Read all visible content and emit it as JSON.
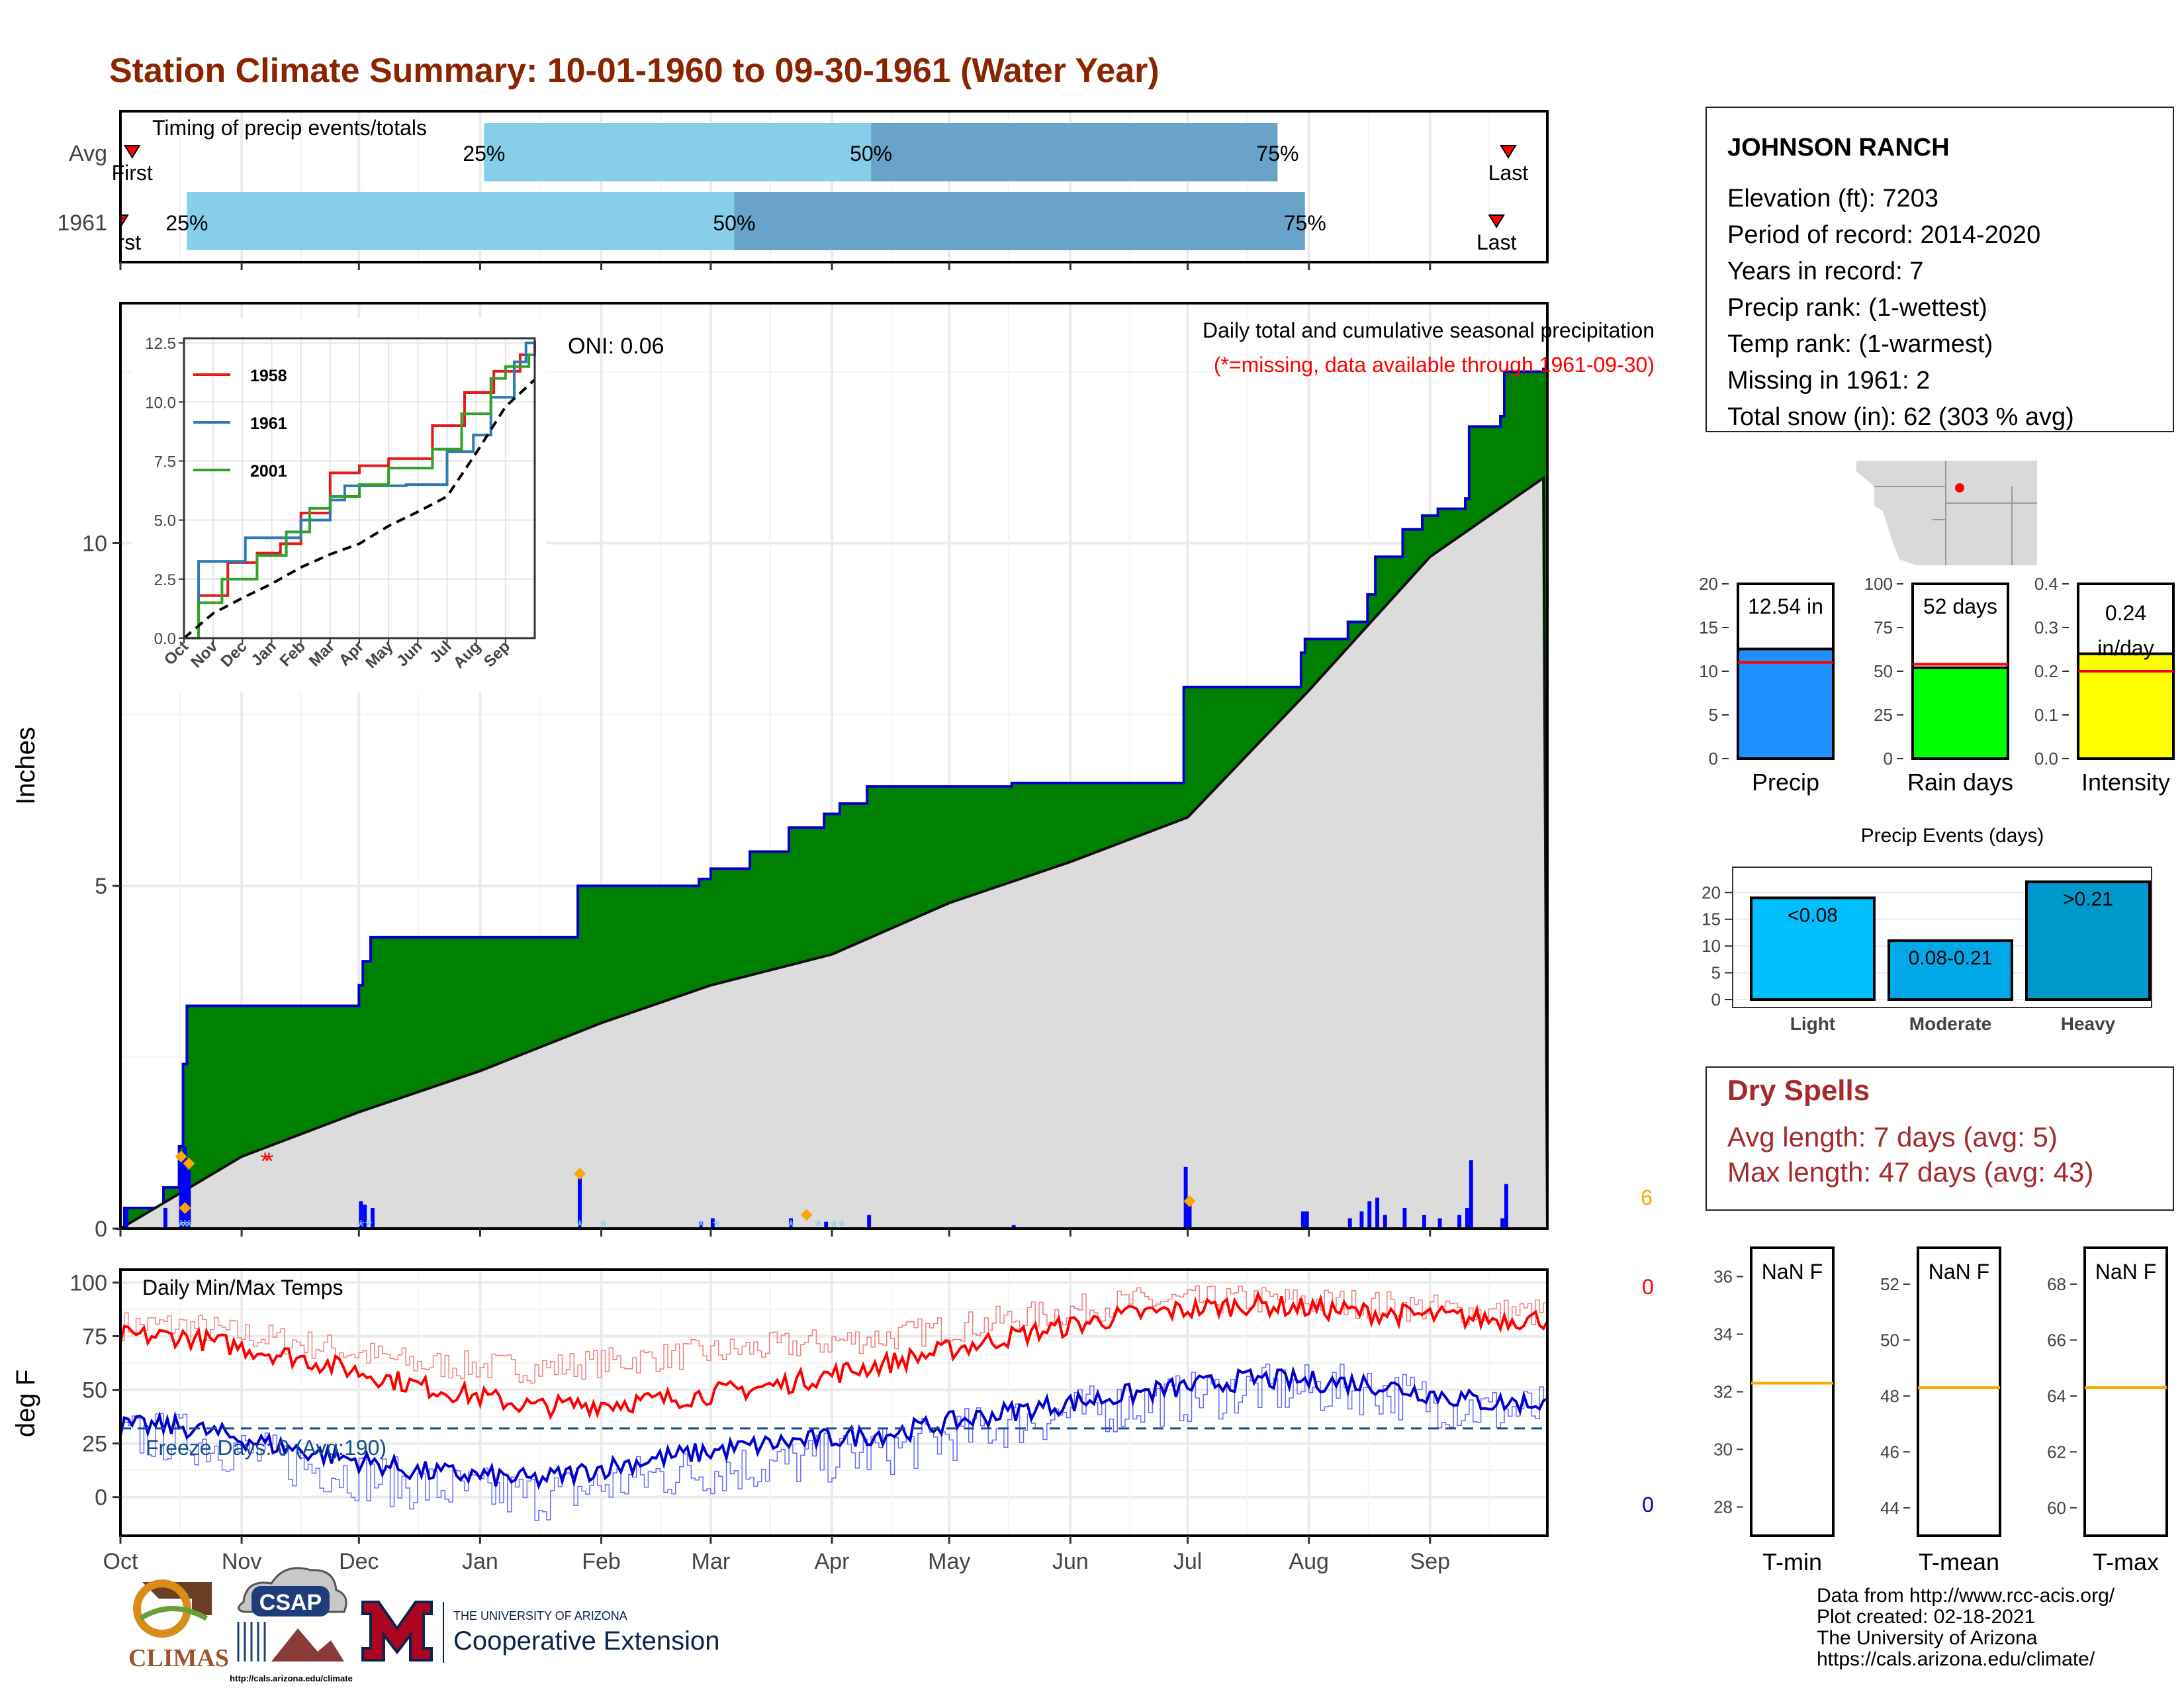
{
  "title": "Station Climate Summary: 10-01-1960 to 09-30-1961 (Water Year)",
  "timing_panel": {
    "label": "Timing of precip events/totals",
    "rows": [
      {
        "name": "Avg",
        "first_label": "First",
        "last_label": "Last",
        "first_date": "1960-10-04",
        "p25_date": "1961-01-02",
        "p50_date": "1961-04-11",
        "p75_date": "1961-07-24",
        "last_date": "1961-09-21"
      },
      {
        "name": "1961",
        "first_label": "First",
        "last_label": "Last",
        "first_date": "1960-10-01",
        "p25_date": "1960-10-18",
        "p50_date": "1961-03-07",
        "p75_date": "1961-07-31",
        "last_date": "1961-09-18"
      }
    ],
    "p25_label": "25%",
    "p50_label": "50%",
    "p75_label": "75%",
    "colors": {
      "light": "#87ceeb",
      "dark": "#6aa3ca"
    }
  },
  "precip_panel": {
    "ylabel": "Inches",
    "title_line1": "Daily total and cumulative seasonal precipitation",
    "title_line2": "(*=missing, data available through 1961-09-30)",
    "oni_label": "ONI: 0.06",
    "corner_count": "6",
    "yticks": [
      "0",
      "5",
      "10"
    ]
  },
  "inset": {
    "yticks": [
      "0.0",
      "2.5",
      "5.0",
      "7.5",
      "10.0",
      "12.5"
    ],
    "xticks": [
      "Oct",
      "Nov",
      "Dec",
      "Jan",
      "Feb",
      "Mar",
      "Apr",
      "May",
      "Jun",
      "Jul",
      "Aug",
      "Sep"
    ],
    "legend": [
      {
        "name": "1958",
        "color": "#e31a1c"
      },
      {
        "name": "1961",
        "color": "#2c7bb6"
      },
      {
        "name": "2001",
        "color": "#33a02c"
      }
    ]
  },
  "temp_panel": {
    "ylabel": "deg F",
    "title": "Daily Min/Max Temps",
    "freeze_label": "Freeze Days: 0 (Avg:190)",
    "max_count": "0",
    "min_count": "0",
    "yticks": [
      "0",
      "25",
      "50",
      "75",
      "100"
    ]
  },
  "month_labels": [
    "Oct",
    "Nov",
    "Dec",
    "Jan",
    "Feb",
    "Mar",
    "Apr",
    "May",
    "Jun",
    "Jul",
    "Aug",
    "Sep"
  ],
  "station": {
    "name": "JOHNSON RANCH",
    "lines": [
      "Elevation (ft): 7203",
      "Period of record: 2014-2020",
      "Years in record: 7",
      "Precip rank:  (1-wettest)",
      "Temp rank:  (1-warmest)",
      "Missing in 1961: 2",
      "Total snow (in): 62 (303 % avg)"
    ]
  },
  "bar_gauges": [
    {
      "label": "Precip",
      "value": 12.54,
      "value_label": "12.54 in",
      "avg": 11.0,
      "ymax": 20,
      "yticks": [
        "0",
        "5",
        "10",
        "15",
        "20"
      ],
      "color": "#1e90ff"
    },
    {
      "label": "Rain days",
      "value": 52,
      "value_label": "52 days",
      "avg": 54,
      "ymax": 100,
      "yticks": [
        "0",
        "25",
        "50",
        "75",
        "100"
      ],
      "color": "#00ff00"
    },
    {
      "label": "Intensity",
      "value": 0.24,
      "value_label": "0.24 in/day",
      "avg": 0.2,
      "ymax": 0.4,
      "yticks": [
        "0.0",
        "0.1",
        "0.2",
        "0.3",
        "0.4"
      ],
      "color": "#ffff00"
    }
  ],
  "events_chart": {
    "title": "Precip Events (days)",
    "yticks": [
      "0",
      "5",
      "10",
      "15",
      "20"
    ],
    "bars": [
      {
        "label": "Light",
        "value": 19,
        "bar_label": "<0.08",
        "color": "#00bfff"
      },
      {
        "label": "Moderate",
        "value": 11,
        "bar_label": "0.08-0.21",
        "color": "#00a8e8"
      },
      {
        "label": "Heavy",
        "value": 22,
        "bar_label": ">0.21",
        "color": "#0099cc"
      }
    ]
  },
  "dry_spells": {
    "title": "Dry Spells",
    "avg_line": "Avg length: 7 days (avg: 5)",
    "max_line": "Max length: 47 days (avg: 43)",
    "color": "#a52a2a"
  },
  "temp_gauges": [
    {
      "label": "T-min",
      "value_label": "NaN F",
      "yticks": [
        "28",
        "30",
        "32",
        "34",
        "36"
      ],
      "ymin": 27,
      "ymax": 37,
      "avg": 32.3
    },
    {
      "label": "T-mean",
      "value_label": "NaN F",
      "yticks": [
        "44",
        "46",
        "48",
        "50",
        "52"
      ],
      "ymin": 43,
      "ymax": 53.3,
      "avg": 48.3
    },
    {
      "label": "T-max",
      "value_label": "NaN F",
      "yticks": [
        "60",
        "62",
        "64",
        "66",
        "68"
      ],
      "ymin": 59,
      "ymax": 69.3,
      "avg": 64.3
    }
  ],
  "footer": {
    "lines": [
      "Data from http://www.rcc-acis.org/",
      "Plot created: 02-18-2021",
      "The University of Arizona",
      "https://cals.arizona.edu/climate/"
    ],
    "climas": "CLIMAS",
    "csap": "CSAP",
    "csap_url": "http://cals.arizona.edu/climate",
    "ua_line1": "THE UNIVERSITY OF ARIZONA",
    "ua_line2": "Cooperative Extension"
  },
  "chart_data": [
    {
      "type": "area",
      "title": "Daily total and cumulative seasonal precipitation",
      "ylabel": "Inches",
      "ylim": [
        0,
        13.5
      ],
      "x_range": [
        "1960-10-01",
        "1961-09-30"
      ],
      "series": [
        {
          "name": "cumulative",
          "points": [
            [
              "1960-10-01",
              0
            ],
            [
              "1960-10-02",
              0.3
            ],
            [
              "1960-10-12",
              0.6
            ],
            [
              "1960-10-16",
              1.2
            ],
            [
              "1960-10-17",
              2.4
            ],
            [
              "1960-10-18",
              3.25
            ],
            [
              "1960-12-01",
              3.55
            ],
            [
              "1960-12-02",
              3.9
            ],
            [
              "1960-12-04",
              4.25
            ],
            [
              "1961-01-26",
              5.0
            ],
            [
              "1961-02-26",
              5.1
            ],
            [
              "1961-03-01",
              5.25
            ],
            [
              "1961-03-11",
              5.5
            ],
            [
              "1961-03-21",
              5.85
            ],
            [
              "1961-03-30",
              6.05
            ],
            [
              "1961-04-03",
              6.2
            ],
            [
              "1961-04-10",
              6.45
            ],
            [
              "1961-05-17",
              6.5
            ],
            [
              "1961-06-30",
              7.9
            ],
            [
              "1961-07-30",
              8.4
            ],
            [
              "1961-07-31",
              8.6
            ],
            [
              "1961-08-11",
              8.85
            ],
            [
              "1961-08-16",
              9.25
            ],
            [
              "1961-08-18",
              9.8
            ],
            [
              "1961-08-25",
              10.2
            ],
            [
              "1961-08-30",
              10.4
            ],
            [
              "1961-09-03",
              10.5
            ],
            [
              "1961-09-10",
              10.65
            ],
            [
              "1961-09-11",
              11.7
            ],
            [
              "1961-09-19",
              11.85
            ],
            [
              "1961-09-20",
              12.5
            ],
            [
              "1961-09-30",
              12.54
            ]
          ]
        },
        {
          "name": "average cumulative",
          "points": [
            [
              "1960-10-01",
              0
            ],
            [
              "1960-11-01",
              1.05
            ],
            [
              "1960-12-01",
              1.7
            ],
            [
              "1961-01-01",
              2.3
            ],
            [
              "1961-02-01",
              3.0
            ],
            [
              "1961-03-01",
              3.55
            ],
            [
              "1961-04-01",
              4.0
            ],
            [
              "1961-05-01",
              4.75
            ],
            [
              "1961-06-01",
              5.35
            ],
            [
              "1961-07-01",
              6.0
            ],
            [
              "1961-08-01",
              7.85
            ],
            [
              "1961-09-01",
              9.8
            ],
            [
              "1961-09-30",
              10.95
            ]
          ]
        },
        {
          "name": "daily",
          "points": [
            [
              "1960-10-02",
              0.3
            ],
            [
              "1960-10-12",
              0.3
            ],
            [
              "1960-10-16",
              1.05
            ],
            [
              "1960-10-17",
              1.2
            ],
            [
              "1960-10-18",
              0.85
            ],
            [
              "1960-12-01",
              0.4
            ],
            [
              "1960-12-02",
              0.35
            ],
            [
              "1960-12-04",
              0.3
            ],
            [
              "1961-01-26",
              0.75
            ],
            [
              "1961-02-26",
              0.1
            ],
            [
              "1961-03-01",
              0.15
            ],
            [
              "1961-03-21",
              0.15
            ],
            [
              "1961-03-30",
              0.1
            ],
            [
              "1961-04-10",
              0.2
            ],
            [
              "1961-05-17",
              0.05
            ],
            [
              "1961-06-30",
              0.9
            ],
            [
              "1961-07-01",
              0.35
            ],
            [
              "1961-07-30",
              0.25
            ],
            [
              "1961-07-31",
              0.25
            ],
            [
              "1961-08-11",
              0.15
            ],
            [
              "1961-08-14",
              0.25
            ],
            [
              "1961-08-16",
              0.4
            ],
            [
              "1961-08-18",
              0.45
            ],
            [
              "1961-08-20",
              0.2
            ],
            [
              "1961-08-25",
              0.3
            ],
            [
              "1961-08-30",
              0.2
            ],
            [
              "1961-09-03",
              0.15
            ],
            [
              "1961-09-08",
              0.2
            ],
            [
              "1961-09-10",
              0.3
            ],
            [
              "1961-09-11",
              1.0
            ],
            [
              "1961-09-19",
              0.15
            ],
            [
              "1961-09-20",
              0.65
            ]
          ]
        },
        {
          "name": "missing",
          "points": [
            [
              "1960-11-07",
              1.0
            ],
            [
              "1960-11-08",
              1.0
            ]
          ]
        }
      ]
    },
    {
      "type": "line",
      "title": "",
      "xticks": [
        "Oct",
        "Nov",
        "Dec",
        "Jan",
        "Feb",
        "Mar",
        "Apr",
        "May",
        "Jun",
        "Jul",
        "Aug",
        "Sep"
      ],
      "ylim": [
        0,
        12.5
      ],
      "series": [
        {
          "name": "1958",
          "values": [
            [
              0,
              0
            ],
            [
              0.5,
              1.8
            ],
            [
              1.5,
              3.2
            ],
            [
              2.5,
              3.6
            ],
            [
              3.3,
              4.0
            ],
            [
              4.0,
              5.3
            ],
            [
              5.0,
              7.0
            ],
            [
              6.0,
              7.3
            ],
            [
              7.0,
              7.6
            ],
            [
              8.5,
              9.0
            ],
            [
              9.6,
              10.4
            ],
            [
              10.6,
              11.3
            ],
            [
              11.5,
              12.0
            ],
            [
              12.0,
              12.6
            ]
          ]
        },
        {
          "name": "1961",
          "values": [
            [
              0,
              0
            ],
            [
              0.5,
              3.25
            ],
            [
              2.1,
              4.25
            ],
            [
              4.0,
              5.0
            ],
            [
              5.0,
              5.85
            ],
            [
              5.5,
              6.45
            ],
            [
              7.6,
              6.5
            ],
            [
              9.0,
              7.9
            ],
            [
              9.9,
              8.6
            ],
            [
              10.5,
              10.2
            ],
            [
              11.3,
              11.7
            ],
            [
              11.7,
              12.5
            ],
            [
              12.0,
              12.54
            ]
          ]
        },
        {
          "name": "2001",
          "values": [
            [
              0,
              0
            ],
            [
              0.5,
              1.5
            ],
            [
              1.3,
              2.5
            ],
            [
              2.5,
              3.5
            ],
            [
              3.5,
              4.5
            ],
            [
              4.3,
              5.5
            ],
            [
              5.0,
              6.0
            ],
            [
              6.0,
              6.5
            ],
            [
              7.0,
              7.2
            ],
            [
              8.5,
              8.0
            ],
            [
              9.5,
              9.5
            ],
            [
              10.5,
              11.0
            ],
            [
              11.0,
              11.5
            ],
            [
              11.8,
              12.0
            ],
            [
              12.0,
              12.1
            ]
          ]
        },
        {
          "name": "average",
          "values": [
            [
              0,
              0
            ],
            [
              1,
              1.05
            ],
            [
              2,
              1.7
            ],
            [
              3,
              2.3
            ],
            [
              4,
              3.0
            ],
            [
              5,
              3.55
            ],
            [
              6,
              4.0
            ],
            [
              7,
              4.75
            ],
            [
              8,
              5.35
            ],
            [
              9,
              6.0
            ],
            [
              10,
              7.85
            ],
            [
              11,
              9.8
            ],
            [
              12,
              10.95
            ]
          ]
        }
      ]
    },
    {
      "type": "line",
      "title": "Daily Min/Max Temps",
      "ylabel": "deg F",
      "ylim": [
        -10,
        100
      ],
      "months": [
        "Oct",
        "Nov",
        "Dec",
        "Jan",
        "Feb",
        "Mar",
        "Apr",
        "May",
        "Jun",
        "Jul",
        "Aug",
        "Sep"
      ],
      "series": [
        {
          "name": "max",
          "monthly_values": [
            75,
            65,
            52,
            42,
            45,
            52,
            63,
            75,
            85,
            90,
            86,
            83
          ]
        },
        {
          "name": "avg max",
          "monthly_values": [
            80,
            72,
            62,
            60,
            65,
            70,
            75,
            83,
            91,
            92,
            90,
            86
          ]
        },
        {
          "name": "min",
          "monthly_values": [
            33,
            22,
            12,
            8,
            18,
            25,
            30,
            40,
            48,
            55,
            53,
            44
          ]
        },
        {
          "name": "avg min",
          "monthly_values": [
            28,
            15,
            5,
            0,
            10,
            15,
            22,
            35,
            43,
            50,
            50,
            40
          ]
        }
      ],
      "freeze_line": 32
    },
    {
      "type": "bar",
      "title": "Precip Events (days)",
      "categories": [
        "Light",
        "Moderate",
        "Heavy"
      ],
      "values": [
        19,
        11,
        22
      ],
      "ylim": [
        0,
        22
      ]
    }
  ]
}
